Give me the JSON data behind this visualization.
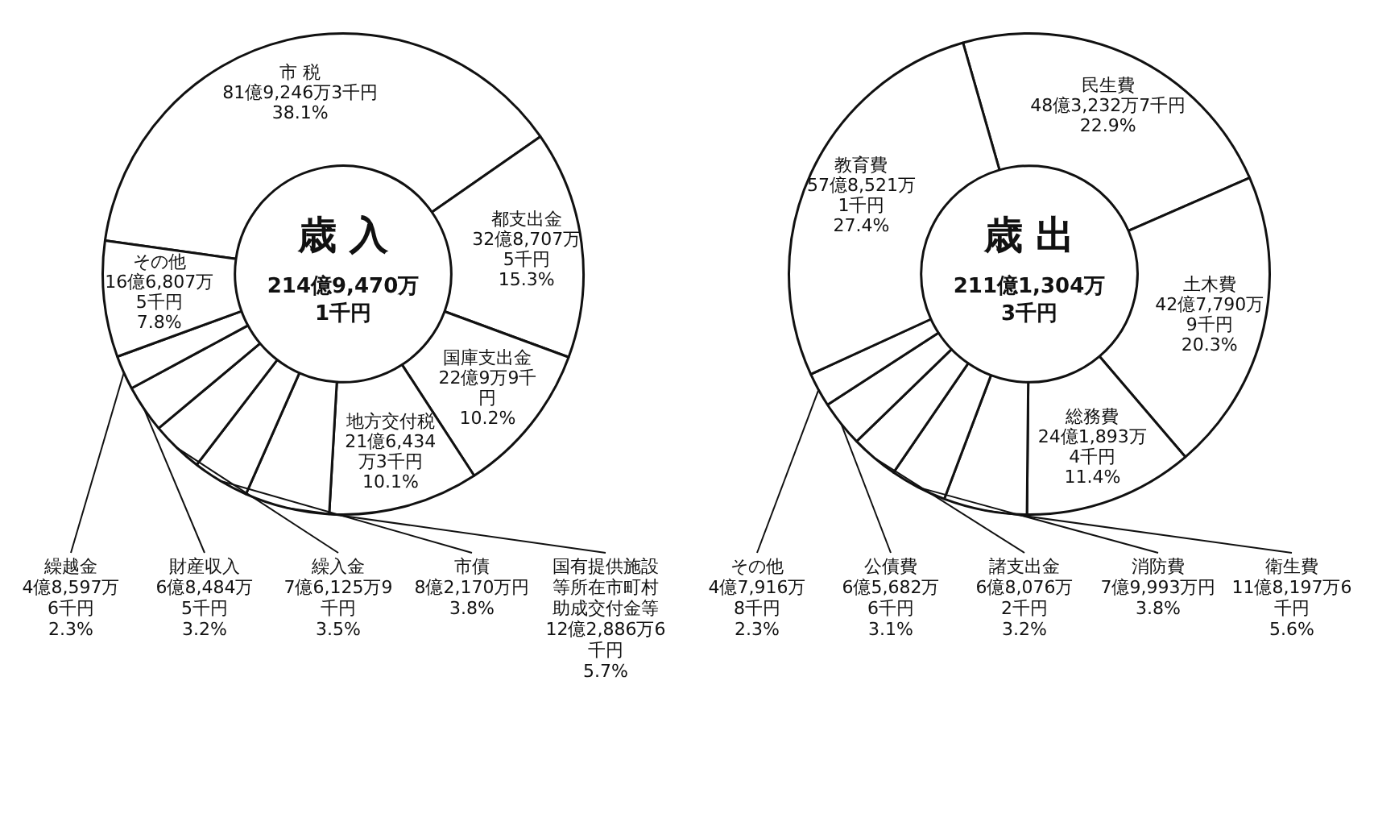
{
  "chart_data": [
    {
      "type": "donut",
      "title": "歳 入",
      "subtitle": "214億9,470万\n1千円",
      "categories": [
        "市 税",
        "都支出金",
        "国庫支出金",
        "地方交付税",
        "国有提供施設等所在市町村助成交付金等",
        "市債",
        "繰入金",
        "財産収入",
        "繰越金",
        "その他"
      ],
      "values": [
        38.1,
        15.3,
        10.2,
        10.1,
        5.7,
        3.8,
        3.5,
        3.2,
        2.3,
        7.8
      ],
      "value_labels": [
        "81億9,246万3千円\n38.1%",
        "32億8,707万\n5千円\n15.3%",
        "22億9万9千円\n10.2%",
        "21億6,434万3千円\n10.1%",
        "12億2,886万6千円\n5.7%",
        "8億2,170万円\n3.8%",
        "7億6,125万9千円\n3.5%",
        "6億8,484万\n5千円\n3.2%",
        "4億8,597万\n6千円\n2.3%",
        "16億6,807万\n5千円\n7.8%"
      ],
      "colors": [
        "#ffffff",
        "#ffffff",
        "#ffffff",
        "#ffffff",
        "#ffffff",
        "#ffffff",
        "#ffffff",
        "#ffffff",
        "#ffffff",
        "#ffffff"
      ]
    },
    {
      "type": "donut",
      "title": "歳 出",
      "subtitle": "211億1,304万\n3千円",
      "categories": [
        "民生費",
        "土木費",
        "総務費",
        "衛生費",
        "消防費",
        "諸支出金",
        "公債費",
        "その他",
        "教育費"
      ],
      "values": [
        22.9,
        20.3,
        11.4,
        5.6,
        3.8,
        3.2,
        3.1,
        2.3,
        27.4
      ],
      "value_labels": [
        "48億3,232万7千円\n22.9%",
        "42億7,790万\n9千円\n20.3%",
        "24億1,893万4千円\n11.4%",
        "11億8,197万6千円\n5.6%",
        "7億9,993万円\n3.8%",
        "6億8,076万\n2千円\n3.2%",
        "6億5,682万\n6千円\n3.1%",
        "4億7,916万\n8千円\n2.3%",
        "57億8,521万\n1千円\n27.4%"
      ],
      "colors": [
        "#ffffff",
        "#ffffff",
        "#ffffff",
        "#ffffff",
        "#ffffff",
        "#ffffff",
        "#ffffff",
        "#ffffff",
        "#ffffff"
      ]
    }
  ]
}
